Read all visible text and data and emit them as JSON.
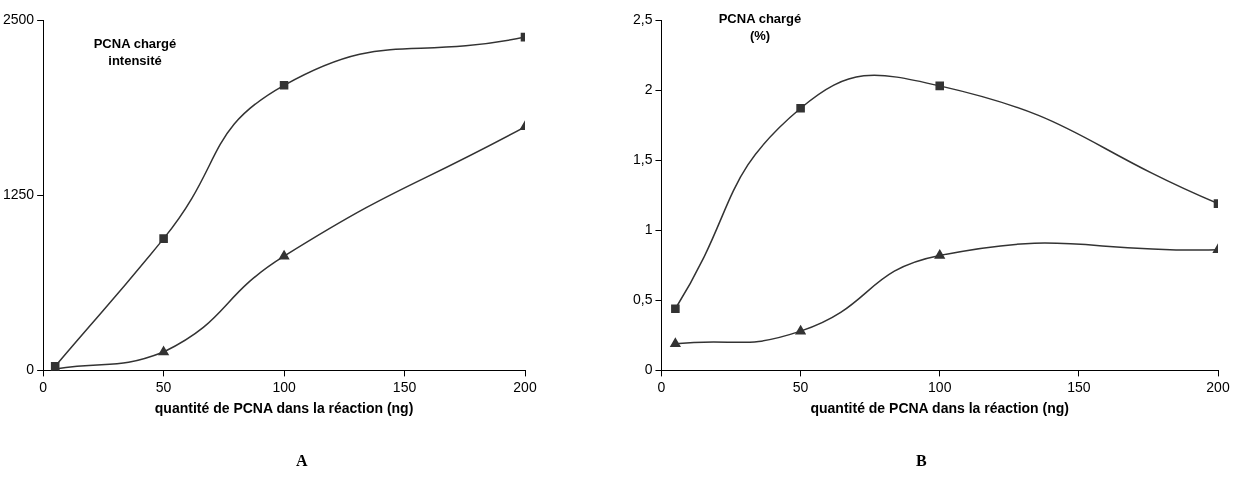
{
  "chart_data": [
    {
      "type": "line",
      "ylabel": "PCNA chargé intensité",
      "xlabel": "quantité de PCNA dans la réaction (ng)",
      "annotations": [
        "A"
      ],
      "x": [
        5,
        50,
        100,
        200
      ],
      "series": [
        {
          "color": "#333333",
          "marker": "square",
          "values": [
            30,
            940,
            2034,
            2378
          ]
        },
        {
          "color": "#333333",
          "marker": "triangle",
          "values": [
            10,
            131,
            815,
            1738
          ]
        }
      ],
      "xlim": [
        0,
        200
      ],
      "xticks": [
        0,
        50,
        100,
        150,
        200
      ],
      "ylim": [
        0,
        2500
      ],
      "yticks": [
        0,
        1250,
        2500
      ],
      "grid": false,
      "legend": false
    },
    {
      "type": "line",
      "ylabel": "PCNA chargé (%)",
      "xlabel": "quantité de PCNA dans la réaction (ng)",
      "annotations": [
        "B"
      ],
      "x": [
        5,
        50,
        100,
        200
      ],
      "series": [
        {
          "color": "#333333",
          "marker": "square",
          "values": [
            0.44,
            1.87,
            2.03,
            1.19
          ]
        },
        {
          "color": "#333333",
          "marker": "triangle",
          "values": [
            0.19,
            0.28,
            0.82,
            0.86
          ]
        }
      ],
      "xlim": [
        0,
        200
      ],
      "xticks": [
        0,
        50,
        100,
        150,
        200
      ],
      "ylim": [
        0,
        2.5
      ],
      "yticks": [
        {
          "value": 0,
          "label": "0"
        },
        {
          "value": 0.5,
          "label": "0,5"
        },
        {
          "value": 1,
          "label": "1"
        },
        {
          "value": 1.5,
          "label": "1,5"
        },
        {
          "value": 2,
          "label": "2"
        },
        {
          "value": 2.5,
          "label": "2,5"
        }
      ],
      "grid": false,
      "legend": false
    }
  ]
}
